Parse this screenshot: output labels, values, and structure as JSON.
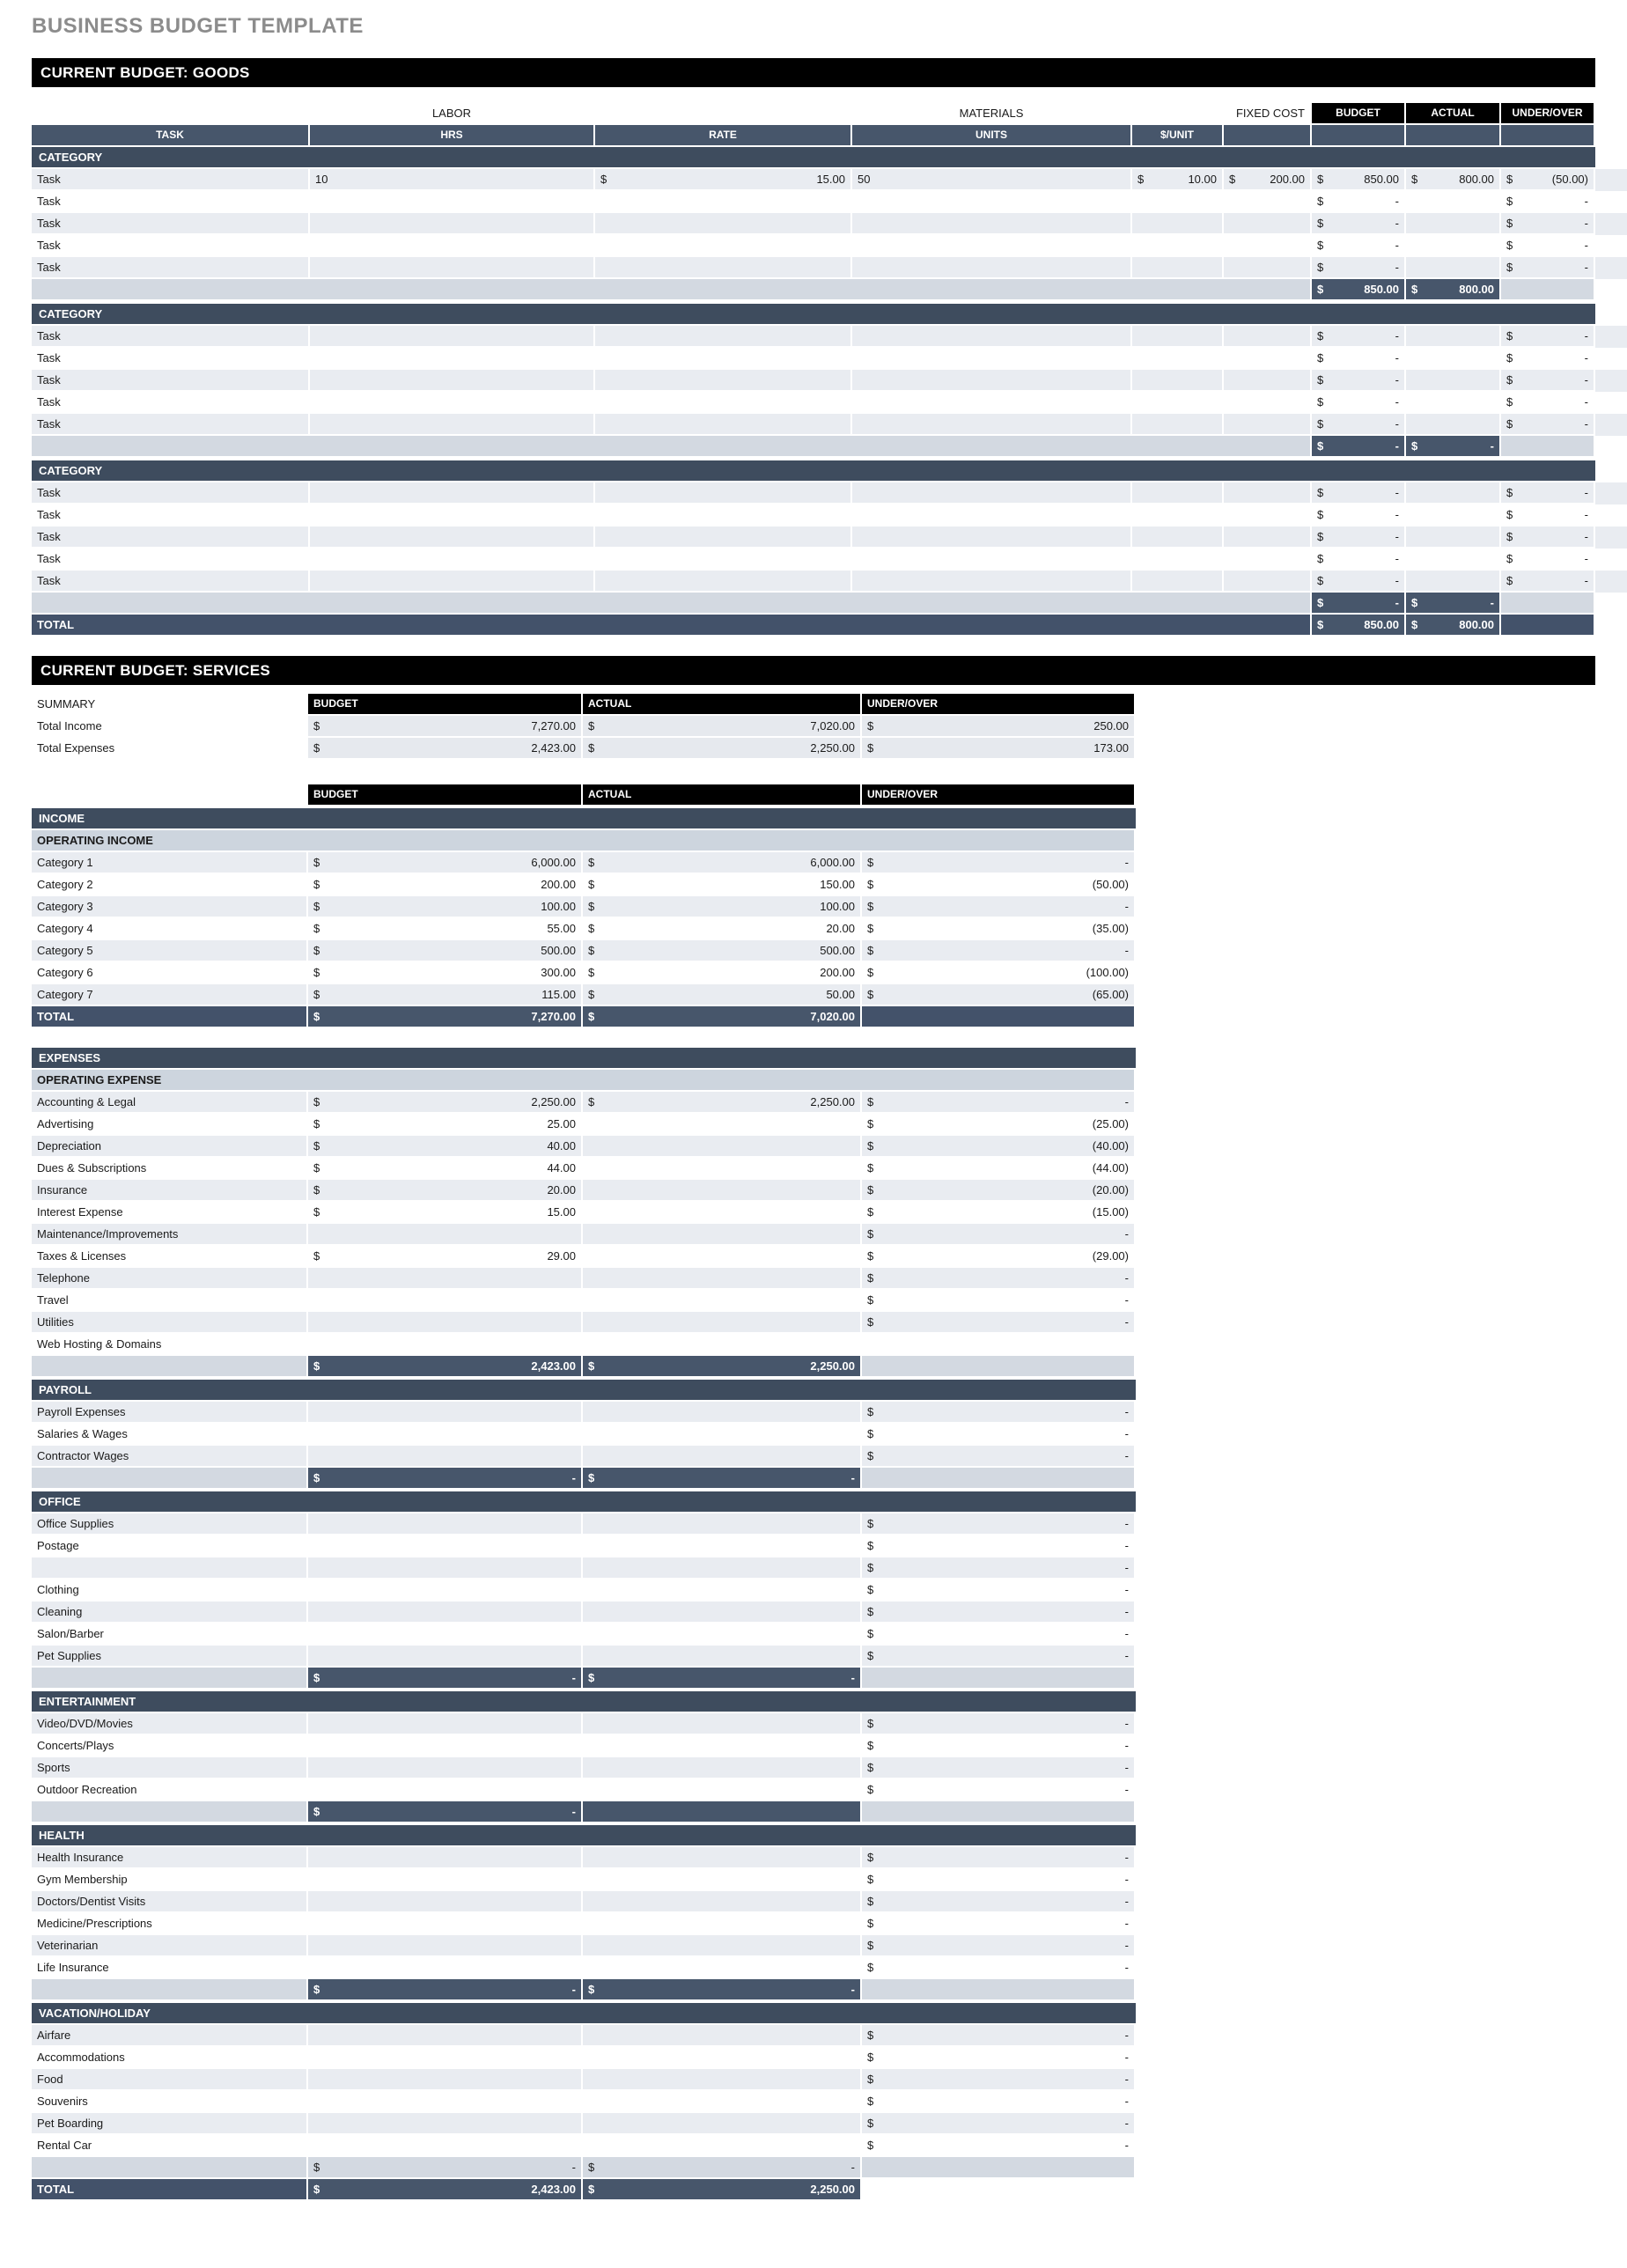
{
  "currency": "$",
  "page_title": "BUSINESS BUDGET TEMPLATE",
  "goods": {
    "title": "CURRENT BUDGET: GOODS",
    "labor_label": "LABOR",
    "materials_label": "MATERIALS",
    "fixed_cost_label": "FIXED COST",
    "budget_label": "BUDGET",
    "actual_label": "ACTUAL",
    "under_over_label": "UNDER/OVER",
    "task_label": "TASK",
    "hrs_label": "HRS",
    "rate_label": "RATE",
    "units_label": "UNITS",
    "per_unit_label": "$/UNIT",
    "categories": [
      {
        "label": "CATEGORY",
        "tasks": [
          {
            "task": "Task",
            "hrs": "10",
            "rate": "15.00",
            "units": "50",
            "per_unit": "10.00",
            "fixed_cost": "200.00",
            "budget": "850.00",
            "actual": "800.00",
            "under_over": "(50.00)"
          },
          {
            "task": "Task",
            "budget": "-",
            "under_over": "-"
          },
          {
            "task": "Task",
            "budget": "-",
            "under_over": "-"
          },
          {
            "task": "Task",
            "budget": "-",
            "under_over": "-"
          },
          {
            "task": "Task",
            "budget": "-",
            "under_over": "-"
          }
        ],
        "subtotal": {
          "budget": "850.00",
          "actual": "800.00"
        }
      },
      {
        "label": "CATEGORY",
        "tasks": [
          {
            "task": "Task",
            "budget": "-",
            "under_over": "-"
          },
          {
            "task": "Task",
            "budget": "-",
            "under_over": "-"
          },
          {
            "task": "Task",
            "budget": "-",
            "under_over": "-"
          },
          {
            "task": "Task",
            "budget": "-",
            "under_over": "-"
          },
          {
            "task": "Task",
            "budget": "-",
            "under_over": "-"
          }
        ],
        "subtotal": {
          "budget": "-",
          "actual": "-"
        }
      },
      {
        "label": "CATEGORY",
        "tasks": [
          {
            "task": "Task",
            "budget": "-",
            "under_over": "-"
          },
          {
            "task": "Task",
            "budget": "-",
            "under_over": "-"
          },
          {
            "task": "Task",
            "budget": "-",
            "under_over": "-"
          },
          {
            "task": "Task",
            "budget": "-",
            "under_over": "-"
          },
          {
            "task": "Task",
            "budget": "-",
            "under_over": "-"
          }
        ],
        "subtotal": {
          "budget": "-",
          "actual": "-"
        }
      }
    ],
    "total": {
      "label": "TOTAL",
      "budget": "850.00",
      "actual": "800.00"
    }
  },
  "services": {
    "title": "CURRENT BUDGET: SERVICES",
    "budget_label": "BUDGET",
    "actual_label": "ACTUAL",
    "under_over_label": "UNDER/OVER",
    "summary": {
      "label": "SUMMARY",
      "rows": [
        {
          "label": "Total Income",
          "budget": "7,270.00",
          "actual": "7,020.00",
          "under_over": "250.00"
        },
        {
          "label": "Total Expenses",
          "budget": "2,423.00",
          "actual": "2,250.00",
          "under_over": "173.00"
        }
      ]
    },
    "blocks": [
      {
        "header": "INCOME",
        "band": "OPERATING INCOME",
        "rows": [
          {
            "label": "Category 1",
            "budget": "6,000.00",
            "actual": "6,000.00",
            "under_over": "-"
          },
          {
            "label": "Category 2",
            "budget": "200.00",
            "actual": "150.00",
            "under_over": "(50.00)"
          },
          {
            "label": "Category 3",
            "budget": "100.00",
            "actual": "100.00",
            "under_over": "-"
          },
          {
            "label": "Category 4",
            "budget": "55.00",
            "actual": "20.00",
            "under_over": "(35.00)"
          },
          {
            "label": "Category 5",
            "budget": "500.00",
            "actual": "500.00",
            "under_over": "-"
          },
          {
            "label": "Category 6",
            "budget": "300.00",
            "actual": "200.00",
            "under_over": "(100.00)"
          },
          {
            "label": "Category 7",
            "budget": "115.00",
            "actual": "50.00",
            "under_over": "(65.00)"
          }
        ],
        "footer": {
          "type": "total",
          "label": "TOTAL",
          "budget": "7,270.00",
          "actual": "7,020.00"
        }
      },
      {
        "header": "EXPENSES",
        "band": "OPERATING EXPENSE",
        "gap_before": true,
        "rows": [
          {
            "label": "Accounting & Legal",
            "budget": "2,250.00",
            "actual": "2,250.00",
            "under_over": "-"
          },
          {
            "label": "Advertising",
            "budget": "25.00",
            "under_over": "(25.00)"
          },
          {
            "label": "Depreciation",
            "budget": "40.00",
            "under_over": "(40.00)"
          },
          {
            "label": "Dues & Subscriptions",
            "budget": "44.00",
            "under_over": "(44.00)"
          },
          {
            "label": "Insurance",
            "budget": "20.00",
            "under_over": "(20.00)"
          },
          {
            "label": "Interest Expense",
            "budget": "15.00",
            "under_over": "(15.00)"
          },
          {
            "label": "Maintenance/Improvements",
            "under_over": "-"
          },
          {
            "label": "Taxes & Licenses",
            "budget": "29.00",
            "under_over": "(29.00)"
          },
          {
            "label": "Telephone",
            "under_over": "-"
          },
          {
            "label": "Travel",
            "under_over": "-"
          },
          {
            "label": "Utilities",
            "under_over": "-"
          },
          {
            "label": "Web Hosting & Domains"
          }
        ],
        "footer": {
          "type": "subtotal-dark",
          "budget": "2,423.00",
          "actual": "2,250.00"
        }
      },
      {
        "header": "PAYROLL",
        "rows": [
          {
            "label": "Payroll Expenses",
            "under_over": "-"
          },
          {
            "label": "Salaries & Wages",
            "under_over": "-"
          },
          {
            "label": "Contractor Wages",
            "under_over": "-"
          }
        ],
        "footer": {
          "type": "subtotal-dark",
          "budget": "-",
          "actual": "-"
        }
      },
      {
        "header": "OFFICE",
        "rows": [
          {
            "label": "Office Supplies",
            "under_over": "-"
          },
          {
            "label": "Postage",
            "under_over": "-"
          },
          {
            "label": "",
            "under_over": "-"
          },
          {
            "label": "Clothing",
            "under_over": "-"
          },
          {
            "label": "Cleaning",
            "under_over": "-"
          },
          {
            "label": "Salon/Barber",
            "under_over": "-"
          },
          {
            "label": "Pet Supplies",
            "under_over": "-"
          }
        ],
        "footer": {
          "type": "subtotal-dark",
          "budget": "-",
          "actual": "-"
        }
      },
      {
        "header": "ENTERTAINMENT",
        "rows": [
          {
            "label": "Video/DVD/Movies",
            "under_over": "-"
          },
          {
            "label": "Concerts/Plays",
            "under_over": "-"
          },
          {
            "label": "Sports",
            "under_over": "-"
          },
          {
            "label": "Outdoor Recreation",
            "under_over": "-"
          }
        ],
        "footer": {
          "type": "subtotal-dark",
          "budget": "-",
          "actual": ""
        }
      },
      {
        "header": "HEALTH",
        "rows": [
          {
            "label": "Health Insurance",
            "under_over": "-"
          },
          {
            "label": "Gym Membership",
            "under_over": "-"
          },
          {
            "label": "Doctors/Dentist Visits",
            "under_over": "-"
          },
          {
            "label": "Medicine/Prescriptions",
            "under_over": "-"
          },
          {
            "label": "Veterinarian",
            "under_over": "-"
          },
          {
            "label": "Life Insurance",
            "under_over": "-"
          }
        ],
        "footer": {
          "type": "subtotal-dark",
          "budget": "-",
          "actual": "-"
        }
      },
      {
        "header": "VACATION/HOLIDAY",
        "rows": [
          {
            "label": "Airfare",
            "under_over": "-"
          },
          {
            "label": "Accommodations",
            "under_over": "-"
          },
          {
            "label": "Food",
            "under_over": "-"
          },
          {
            "label": "Souvenirs",
            "under_over": "-"
          },
          {
            "label": "Pet Boarding",
            "under_over": "-"
          },
          {
            "label": "Rental Car",
            "under_over": "-"
          }
        ],
        "footer": {
          "type": "subtotal-light",
          "budget": "-",
          "actual": "-"
        }
      }
    ],
    "total": {
      "label": "TOTAL",
      "budget": "2,423.00",
      "actual": "2,250.00"
    }
  }
}
